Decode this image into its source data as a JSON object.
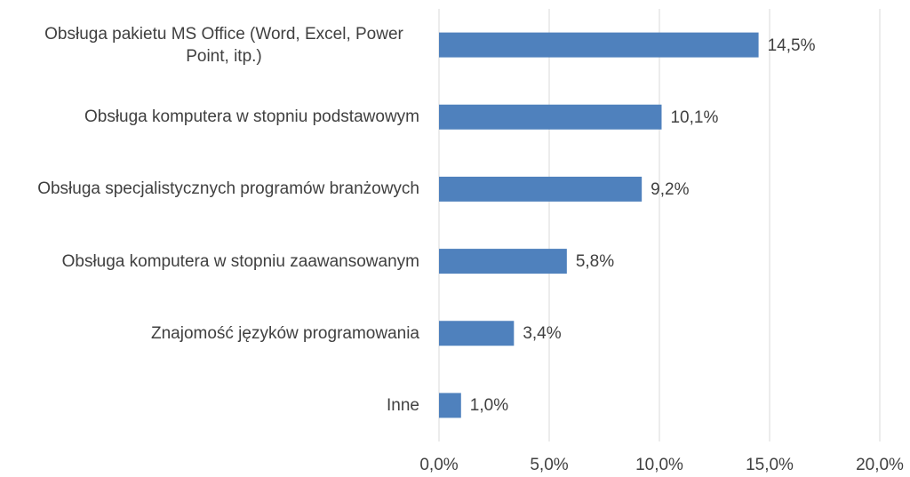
{
  "chart_data": {
    "type": "bar",
    "orientation": "horizontal",
    "categories": [
      "Obsługa pakietu MS Office (Word, Excel, Power Point, itp.)",
      "Obsługa komputera w stopniu podstawowym",
      "Obsługa specjalistycznych programów branżowych",
      "Obsługa komputera w stopniu zaawansowanym",
      "Znajomość języków programowania",
      "Inne"
    ],
    "values": [
      14.5,
      10.1,
      9.2,
      5.8,
      3.4,
      1.0
    ],
    "value_labels": [
      "14,5%",
      "10,1%",
      "9,2%",
      "5,8%",
      "3,4%",
      "1,0%"
    ],
    "color": "#4f81bd",
    "xlim": [
      0,
      20
    ],
    "xticks": [
      {
        "value": 0,
        "label": "0,0%"
      },
      {
        "value": 5,
        "label": "5,0%"
      },
      {
        "value": 10,
        "label": "10,0%"
      },
      {
        "value": 15,
        "label": "15,0%"
      },
      {
        "value": 20,
        "label": "20,0%"
      }
    ],
    "grid": true
  }
}
